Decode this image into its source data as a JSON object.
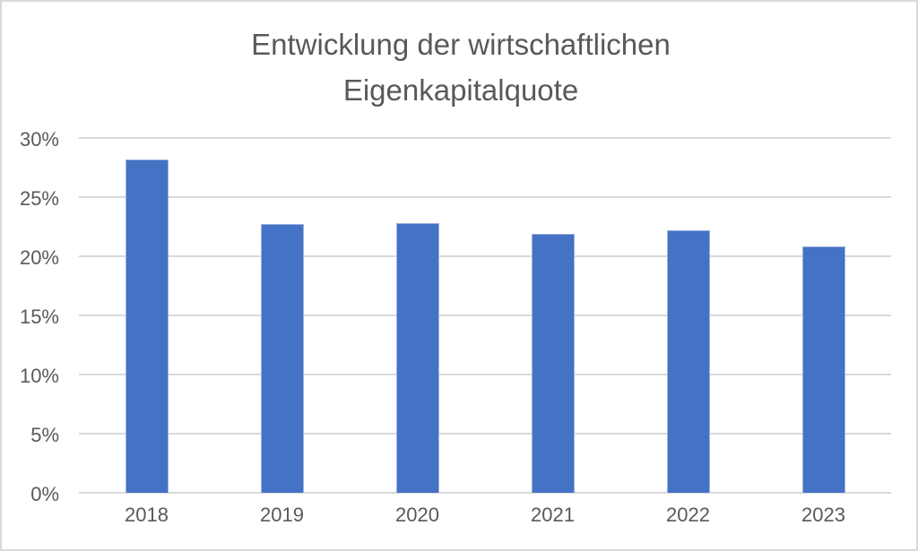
{
  "window": {
    "background": "#ffffff",
    "frame_border_color": "#d9d9d9"
  },
  "chart_data": {
    "type": "bar",
    "title": "Entwicklung der wirtschaftlichen Eigenkapitalquote",
    "categories": [
      "2018",
      "2019",
      "2020",
      "2021",
      "2022",
      "2023"
    ],
    "values": [
      28.2,
      22.7,
      22.8,
      21.9,
      22.2,
      20.8
    ],
    "unit": "%",
    "xlabel": "",
    "ylabel": "",
    "ylim": [
      0,
      30
    ],
    "ytick_step": 5,
    "ytick_labels": [
      "0%",
      "5%",
      "10%",
      "15%",
      "20%",
      "25%",
      "30%"
    ],
    "grid": true,
    "legend": false,
    "bar_color": "#4472C4",
    "bar_border_color": "#9DB3DE",
    "gridline_color": "#D9D9D9",
    "text_color": "#595959",
    "title_color": "#595959"
  }
}
